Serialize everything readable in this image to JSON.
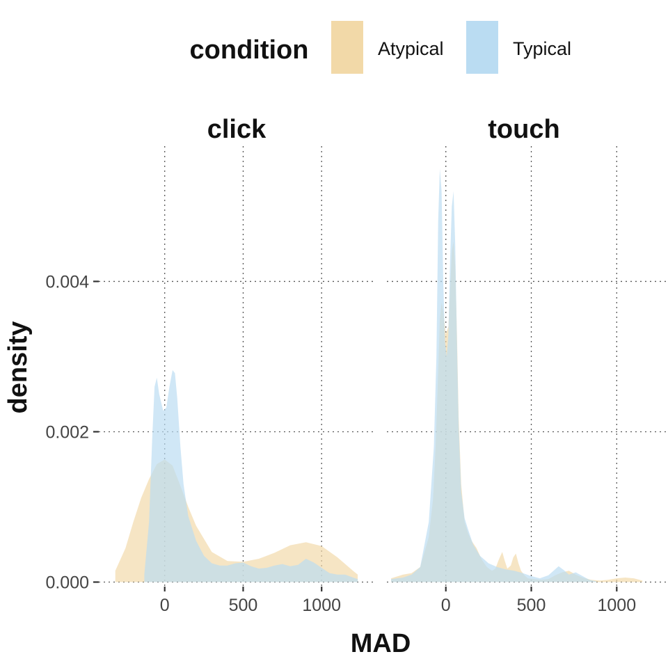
{
  "legend": {
    "title": "condition",
    "items": [
      {
        "label": "Atypical",
        "color": "#F2D9A8"
      },
      {
        "label": "Typical",
        "color": "#BADCF2"
      }
    ]
  },
  "chart_data": {
    "type": "area",
    "subtype": "density",
    "xlabel": "MAD",
    "ylabel": "density",
    "ylim": [
      -6e-05,
      0.0058
    ],
    "yticks": [
      0,
      0.002,
      0.004
    ],
    "ytick_labels": [
      "0.000",
      "0.002",
      "0.004"
    ],
    "xticks": [
      0,
      500,
      1000
    ],
    "xtick_labels": [
      "0",
      "500",
      "1000"
    ],
    "grid": true,
    "legend_position": "top",
    "colors": {
      "Atypical": "#F2D9A8",
      "Typical": "#BADCF2",
      "overlap": "#C5C7B9"
    },
    "panels": [
      {
        "title": "click",
        "xlim": [
          -420,
          1345
        ],
        "series": [
          {
            "name": "Atypical",
            "x": [
              -315,
              -250,
              -200,
              -150,
              -100,
              -50,
              0,
              50,
              100,
              150,
              200,
              300,
              400,
              500,
              600,
              700,
              800,
              900,
              1000,
              1100,
              1200,
              1230
            ],
            "y": [
              0.00015,
              0.00045,
              0.0008,
              0.00112,
              0.00137,
              0.00157,
              0.00163,
              0.00155,
              0.00128,
              0.001,
              0.00075,
              0.0004,
              0.00028,
              0.00027,
              0.00031,
              0.00039,
              0.00049,
              0.00053,
              0.00048,
              0.00033,
              0.00015,
              0.0001
            ]
          },
          {
            "name": "Typical",
            "x": [
              -130,
              -100,
              -80,
              -65,
              -50,
              -35,
              -10,
              10,
              30,
              50,
              65,
              80,
              100,
              120,
              150,
              200,
              250,
              300,
              350,
              400,
              450,
              500,
              550,
              600,
              650,
              700,
              750,
              800,
              850,
              900,
              950,
              1000,
              1050,
              1100,
              1150,
              1200,
              1230
            ],
            "y": [
              0.0001,
              0.0008,
              0.0019,
              0.0026,
              0.00272,
              0.0025,
              0.00228,
              0.00232,
              0.0026,
              0.00282,
              0.00278,
              0.00245,
              0.0018,
              0.0013,
              0.00088,
              0.00055,
              0.00035,
              0.00025,
              0.00022,
              0.00022,
              0.00025,
              0.00026,
              0.00021,
              0.00018,
              0.00019,
              0.00022,
              0.00024,
              0.00021,
              0.00023,
              0.00031,
              0.00026,
              0.00019,
              0.00012,
              0.0001,
              0.0001,
              6e-05,
              4e-05
            ]
          }
        ]
      },
      {
        "title": "touch",
        "xlim": [
          -345,
          1300
        ],
        "series": [
          {
            "name": "Atypical",
            "x": [
              -320,
              -250,
              -200,
              -150,
              -100,
              -75,
              -60,
              -45,
              -35,
              -25,
              -15,
              0,
              15,
              25,
              35,
              45,
              55,
              65,
              75,
              90,
              110,
              130,
              150,
              180,
              210,
              240,
              270,
              290,
              310,
              330,
              345,
              360,
              380,
              395,
              410,
              425,
              440,
              460,
              480,
              520,
              560,
              600,
              640,
              680,
              720,
              760,
              800,
              850,
              900,
              950,
              1000,
              1050,
              1100,
              1150
            ],
            "y": [
              5e-05,
              0.0001,
              0.00012,
              0.0002,
              0.0006,
              0.0011,
              0.0018,
              0.0028,
              0.0035,
              0.00372,
              0.0036,
              0.0033,
              0.0034,
              0.0039,
              0.0044,
              0.00453,
              0.0042,
              0.0033,
              0.0022,
              0.0013,
              0.0008,
              0.00065,
              0.00055,
              0.00045,
              0.0003,
              0.0002,
              0.00015,
              0.00018,
              0.0003,
              0.0004,
              0.00028,
              0.00018,
              0.00022,
              0.00033,
              0.00038,
              0.00025,
              0.00015,
              9e-05,
              5e-05,
              4e-05,
              3e-05,
              4e-05,
              9e-05,
              0.00013,
              0.00015,
              0.0001,
              6e-05,
              3e-05,
              2e-05,
              3e-05,
              5e-05,
              6e-05,
              5e-05,
              2e-05
            ]
          },
          {
            "name": "Typical",
            "x": [
              -320,
              -250,
              -200,
              -150,
              -100,
              -70,
              -55,
              -45,
              -35,
              -25,
              -15,
              -5,
              5,
              15,
              25,
              35,
              45,
              55,
              65,
              75,
              90,
              110,
              130,
              160,
              200,
              250,
              300,
              350,
              400,
              450,
              500,
              550,
              600,
              630,
              660,
              690,
              720,
              760,
              800,
              840,
              880
            ],
            "y": [
              4e-05,
              6e-05,
              0.0001,
              0.0002,
              0.0008,
              0.0018,
              0.003,
              0.0048,
              0.0055,
              0.0052,
              0.004,
              0.0032,
              0.003,
              0.0033,
              0.0043,
              0.005,
              0.0052,
              0.0045,
              0.0032,
              0.0021,
              0.0012,
              0.00085,
              0.0007,
              0.0005,
              0.00035,
              0.00025,
              0.0002,
              0.00017,
              0.00015,
              0.00012,
              8e-05,
              5e-05,
              9e-05,
              0.00015,
              0.00021,
              0.00016,
              0.0001,
              0.00013,
              8e-05,
              3e-05,
              1e-05
            ]
          }
        ]
      }
    ]
  }
}
